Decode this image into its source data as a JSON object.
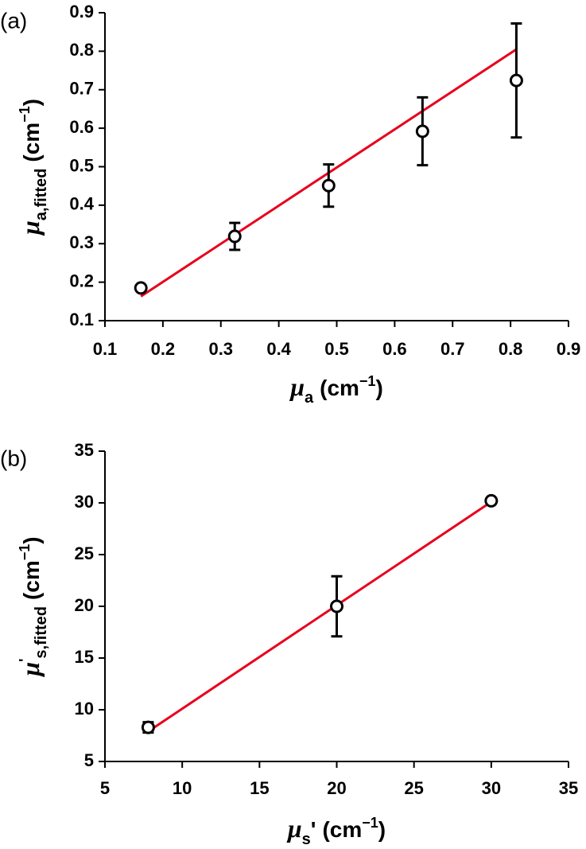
{
  "chart_data": [
    {
      "type": "scatter",
      "panel_label": "(a)",
      "x_label": [
        {
          "text": "μ",
          "style": "italic"
        },
        {
          "text": "a",
          "style": "sub"
        },
        {
          "text": "(cm"
        },
        {
          "text": "−1",
          "style": "sup"
        },
        {
          "text": ")"
        }
      ],
      "y_label": [
        {
          "text": "μ",
          "style": "italic"
        },
        {
          "text": "a,fitted",
          "style": "sub"
        },
        {
          "text": "(cm"
        },
        {
          "text": "−1",
          "style": "sup"
        },
        {
          "text": ")"
        }
      ],
      "x": [
        0.162,
        0.324,
        0.486,
        0.648,
        0.81
      ],
      "y": [
        0.185,
        0.319,
        0.451,
        0.592,
        0.724
      ],
      "yerr": [
        0.005,
        0.035,
        0.055,
        0.088,
        0.148
      ],
      "color": "#000000",
      "fit": {
        "x": [
          0.162,
          0.81
        ],
        "y": [
          0.163,
          0.805
        ],
        "color": "#e8001c"
      },
      "xlim": [
        0.1,
        0.9
      ],
      "xticks": [
        0.1,
        0.2,
        0.3,
        0.4,
        0.5,
        0.6,
        0.7,
        0.8,
        0.9
      ],
      "ylim": [
        0.1,
        0.9
      ],
      "yticks": [
        0.1,
        0.2,
        0.3,
        0.4,
        0.5,
        0.6,
        0.7,
        0.8,
        0.9
      ]
    },
    {
      "type": "scatter",
      "panel_label": "(b)",
      "x_label": [
        {
          "text": "μ",
          "style": "italic"
        },
        {
          "text": "s",
          "style": "sub"
        },
        {
          "text": "'"
        },
        {
          "text": "(cm"
        },
        {
          "text": "−1",
          "style": "sup"
        },
        {
          "text": ")"
        }
      ],
      "y_label": [
        {
          "text": "μ",
          "style": "italic"
        },
        {
          "text": "'",
          "style": "sup"
        },
        {
          "text": "s,fitted",
          "style": "sub"
        },
        {
          "text": "(cm"
        },
        {
          "text": "−1",
          "style": "sup"
        },
        {
          "text": ")"
        }
      ],
      "x": [
        7.8,
        20,
        30
      ],
      "y": [
        8.3,
        20,
        30.2
      ],
      "yerr": [
        0.5,
        2.9,
        0.2
      ],
      "color": "#000000",
      "fit": {
        "x": [
          7.8,
          30
        ],
        "y": [
          7.9,
          30.1
        ],
        "color": "#e8001c"
      },
      "xlim": [
        5,
        35
      ],
      "xticks": [
        5,
        10,
        15,
        20,
        25,
        30,
        35
      ],
      "ylim": [
        5,
        35
      ],
      "yticks": [
        5,
        10,
        15,
        20,
        25,
        30,
        35
      ]
    }
  ]
}
